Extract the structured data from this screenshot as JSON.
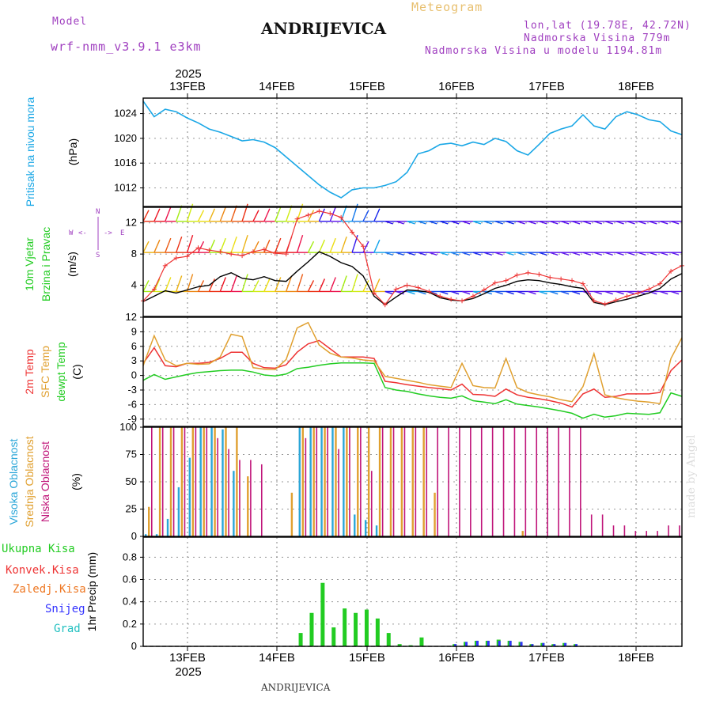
{
  "header": {
    "model_label": "Model",
    "model_name": "wrf-nmm_v3.9.1 e3km",
    "title": "ANDRIJEVICA",
    "subtitle": "Meteogram",
    "lonlat": "lon,lat (19.78E, 42.72N)",
    "elevation": "Nadmorska Visina 779m",
    "model_elevation": "Nadmorska Visina u modelu 1194.81m",
    "footer_station": "ANDRIJEVICA",
    "credit": "made by Angel"
  },
  "colors": {
    "pressure": "#1aa7e6",
    "wind_label": "#22cc22",
    "wind_speed": "#000000",
    "gust": "#ee3333",
    "temp2m": "#ee3333",
    "sfc_temp": "#e0a030",
    "dewpoint": "#22cc22",
    "high_cloud": "#2aa6d8",
    "mid_cloud": "#e0a030",
    "low_cloud": "#c0157a",
    "precip": "#22cc22",
    "convective": "#ee3333",
    "frozen": "#ee7722",
    "snow": "#3333ff",
    "graupel": "#22c0c0",
    "compass": "#a040c0",
    "grid": "#999999"
  },
  "chart_data": {
    "type": "meteogram",
    "time": {
      "start": "12 FEB 2025 12:00",
      "step_hours": 3,
      "days_top": [
        "13FEB",
        "14FEB",
        "15FEB",
        "16FEB",
        "17FEB",
        "18FEB"
      ],
      "days_bottom": [
        "13FEB",
        "14FEB",
        "15FEB",
        "16FEB",
        "17FEB",
        "18FEB"
      ],
      "year_top": "2025",
      "year_bottom": "2025"
    },
    "panels": [
      {
        "id": "pressure",
        "type": "line",
        "ylabel_lines": [
          "Pritisak na nivou mora",
          "(hPa)"
        ],
        "yticks": [
          1012,
          1016,
          1020,
          1024
        ],
        "ylim": [
          1009,
          1026.5
        ],
        "series": [
          {
            "name": "Pritisak na nivou mora",
            "values": [
              1026,
              1023.5,
              1024.7,
              1024.3,
              1023.3,
              1022.5,
              1021.5,
              1021,
              1020.3,
              1019.6,
              1019.8,
              1019.4,
              1018.5,
              1017,
              1015.5,
              1014,
              1012.5,
              1011.3,
              1010.4,
              1011.7,
              1012,
              1012,
              1012.4,
              1013,
              1014.5,
              1017.5,
              1018,
              1019,
              1019.2,
              1018.8,
              1019.4,
              1019,
              1020,
              1019.5,
              1018,
              1017.3,
              1019,
              1020.8,
              1021.5,
              1022,
              1023.8,
              1022,
              1021.5,
              1023.5,
              1024.3,
              1023.8,
              1023,
              1022.7,
              1021.2,
              1020.6
            ]
          }
        ]
      },
      {
        "id": "wind",
        "type": "line",
        "ylabel_lines": [
          "10m Vjetar",
          "Brzina i Pravac",
          "(m/s)"
        ],
        "yticks": [
          4,
          8,
          12
        ],
        "ylim": [
          0,
          14
        ],
        "compass": {
          "n": "N",
          "s": "S",
          "e": "E",
          "w": "W",
          "arrow_up": "<-",
          "arrow_down": "->"
        },
        "series": [
          {
            "name": "Brzina",
            "values": [
              1.9,
              2.6,
              3.3,
              3.0,
              3.4,
              3.8,
              4.0,
              5.1,
              5.6,
              4.9,
              4.7,
              5.1,
              4.6,
              4.5,
              5.8,
              7.0,
              8.3,
              7.7,
              6.9,
              6.4,
              5.2,
              2.6,
              1.5,
              2.5,
              3.4,
              3.3,
              3.1,
              2.4,
              2.1,
              2.0,
              2.3,
              2.9,
              3.6,
              4.0,
              4.5,
              4.7,
              4.6,
              4.3,
              4.1,
              3.8,
              3.6,
              1.8,
              1.5,
              1.9,
              2.2,
              2.6,
              3.0,
              3.6,
              4.8,
              5.5
            ]
          },
          {
            "name": "Udari",
            "values": [
              2.0,
              3.5,
              6.5,
              7.5,
              7.7,
              8.8,
              8.5,
              8.3,
              8.0,
              7.8,
              8.3,
              8.6,
              8.1,
              8.0,
              12.5,
              13.0,
              13.5,
              13.2,
              12.7,
              10.8,
              9.0,
              3.0,
              1.5,
              3.5,
              4.0,
              3.7,
              3.2,
              2.6,
              2.2,
              2.0,
              2.6,
              3.4,
              4.3,
              4.6,
              5.3,
              5.6,
              5.4,
              5.0,
              4.8,
              4.6,
              4.2,
              2.0,
              1.6,
              2.1,
              2.6,
              3.0,
              3.5,
              4.2,
              5.8,
              6.5
            ]
          }
        ]
      },
      {
        "id": "temperature",
        "type": "line",
        "ylabel_lines": [
          "2m Temp",
          "SFC Temp",
          "dewpt Temp",
          "(C)"
        ],
        "yticks": [
          -9,
          -6,
          -3,
          0,
          3,
          6,
          9,
          12
        ],
        "ylim": [
          -10.5,
          12
        ],
        "series": [
          {
            "name": "2m Temp",
            "values": [
              2.5,
              5.7,
              2.0,
              1.8,
              2.5,
              2.5,
              2.7,
              3.5,
              4.8,
              4.8,
              2.5,
              1.6,
              1.5,
              2.2,
              4.8,
              6.5,
              7.2,
              5.5,
              3.8,
              3.8,
              3.8,
              3.5,
              -1.2,
              -1.5,
              -1.9,
              -2.2,
              -2.5,
              -2.7,
              -3.0,
              -1.8,
              -3.9,
              -4.0,
              -4.3,
              -2.8,
              -4.0,
              -4.5,
              -4.8,
              -5.2,
              -5.7,
              -6.5,
              -3.8,
              -2.8,
              -4.5,
              -4.3,
              -3.8,
              -3.8,
              -3.8,
              -3.5,
              1.0,
              3.2
            ]
          },
          {
            "name": "SFC Temp",
            "values": [
              2.0,
              8.2,
              3.2,
              2.0,
              2.5,
              2.3,
              2.4,
              3.8,
              8.5,
              8.0,
              1.6,
              1.3,
              1.2,
              3.3,
              9.8,
              10.9,
              6.3,
              4.6,
              3.8,
              3.6,
              3.2,
              3.0,
              -0.2,
              -0.6,
              -1.0,
              -1.4,
              -1.9,
              -2.2,
              -2.5,
              2.5,
              -2.1,
              -2.5,
              -2.6,
              3.5,
              -2.5,
              -3.5,
              -4.0,
              -4.4,
              -5.0,
              -5.4,
              -2.3,
              4.5,
              -4.0,
              -4.6,
              -5.0,
              -5.3,
              -5.5,
              -5.8,
              3.5,
              7.8
            ]
          },
          {
            "name": "dewpt Temp",
            "values": [
              -1.0,
              0.2,
              -0.8,
              -0.3,
              0.2,
              0.6,
              0.8,
              1.0,
              1.1,
              1.1,
              0.7,
              0.1,
              -0.1,
              0.3,
              1.4,
              1.7,
              2.1,
              2.4,
              2.6,
              2.6,
              2.6,
              2.5,
              -2.5,
              -3.0,
              -3.3,
              -3.8,
              -4.2,
              -4.5,
              -4.7,
              -4.2,
              -5.2,
              -5.5,
              -5.8,
              -5.0,
              -5.9,
              -6.2,
              -6.5,
              -6.9,
              -7.3,
              -7.8,
              -8.8,
              -8.0,
              -8.6,
              -8.3,
              -7.8,
              -7.9,
              -8.0,
              -7.7,
              -3.6,
              -4.3
            ]
          }
        ]
      },
      {
        "id": "clouds",
        "type": "bar",
        "ylabel_lines": [
          "Visoka Oblacnost",
          "Srednja Oblacnost",
          "Niska Oblacnost",
          "(%)"
        ],
        "yticks": [
          0,
          25,
          50,
          75,
          100
        ],
        "ylim": [
          0,
          100
        ],
        "series": [
          {
            "name": "Visoka Oblacnost",
            "values": [
              2,
              2,
              16,
              45,
              72,
              100,
              100,
              98,
              60,
              1,
              1,
              1,
              1,
              1,
              100,
              100,
              100,
              100,
              100,
              20,
              15,
              10,
              1,
              1,
              1,
              1,
              1,
              1,
              1,
              1,
              1,
              1,
              1,
              1,
              1,
              1,
              1,
              1,
              1,
              1,
              1,
              1,
              1,
              1,
              1,
              1,
              1,
              1,
              1,
              1
            ]
          },
          {
            "name": "Srednja Oblacnost",
            "values": [
              27,
              100,
              100,
              100,
              100,
              100,
              100,
              100,
              100,
              55,
              1,
              1,
              1,
              40,
              100,
              100,
              100,
              100,
              100,
              100,
              100,
              100,
              100,
              100,
              100,
              100,
              40,
              1,
              1,
              1,
              1,
              1,
              1,
              1,
              5,
              1,
              1,
              1,
              1,
              1,
              1,
              1,
              1,
              1,
              1,
              1,
              1,
              1,
              1,
              1
            ]
          },
          {
            "name": "Niska Oblacnost",
            "values": [
              100,
              100,
              100,
              100,
              100,
              100,
              90,
              80,
              70,
              70,
              66,
              1,
              1,
              1,
              90,
              100,
              100,
              80,
              100,
              100,
              60,
              100,
              100,
              100,
              100,
              100,
              100,
              100,
              100,
              100,
              100,
              100,
              100,
              100,
              100,
              100,
              100,
              100,
              100,
              100,
              20,
              20,
              10,
              10,
              5,
              5,
              5,
              10,
              10,
              10
            ]
          }
        ]
      },
      {
        "id": "precip",
        "type": "bar",
        "ylabel_lines": [
          "Ukupna Kisa",
          "Konvek.Kisa",
          "Zaledj.Kisa",
          "Snijeg",
          "Grad",
          "1hr Precip (mm)"
        ],
        "legend": [
          "Ukupna Kisa",
          "Konvek.Kisa",
          "Zaledj.Kisa",
          "Snijeg",
          "Grad"
        ],
        "yticks": [
          0,
          0.2,
          0.4,
          0.6,
          0.8
        ],
        "ylim": [
          0,
          0.98
        ],
        "series": [
          {
            "name": "Ukupna Kisa",
            "values": [
              0,
              0,
              0,
              0,
              0,
              0,
              0,
              0,
              0,
              0,
              0,
              0,
              0,
              0,
              0.12,
              0.3,
              0.57,
              0.17,
              0.34,
              0.3,
              0.33,
              0.25,
              0.12,
              0.02,
              0.01,
              0.08,
              0,
              0,
              0.02,
              0.04,
              0.05,
              0.05,
              0.06,
              0.05,
              0.04,
              0.02,
              0.03,
              0.02,
              0.03,
              0.02,
              0,
              0,
              0,
              0,
              0,
              0,
              0,
              0,
              0,
              0
            ]
          },
          {
            "name": "Snijeg",
            "values": [
              0,
              0,
              0,
              0,
              0,
              0,
              0,
              0,
              0,
              0,
              0,
              0,
              0,
              0,
              0,
              0,
              0,
              0,
              0,
              0,
              0,
              0,
              0,
              0,
              0,
              0,
              0,
              0,
              0.02,
              0.04,
              0.05,
              0.05,
              0.05,
              0.05,
              0.04,
              0.02,
              0.03,
              0.02,
              0.03,
              0.02,
              0,
              0,
              0,
              0,
              0,
              0,
              0,
              0,
              0,
              0
            ]
          }
        ]
      }
    ]
  }
}
